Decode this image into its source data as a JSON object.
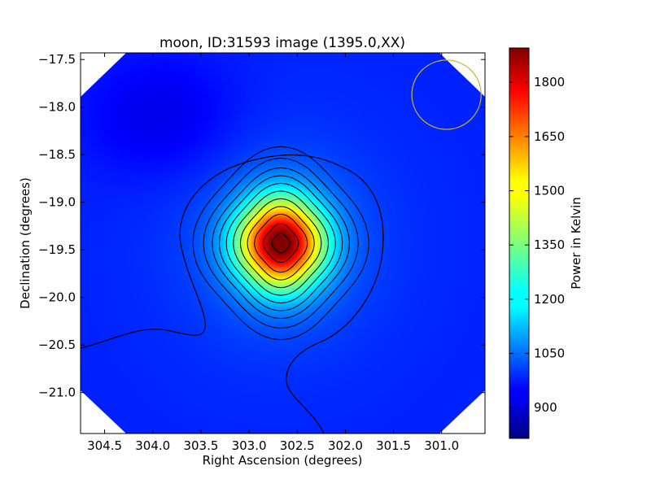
{
  "chart_data": {
    "type": "heatmap",
    "title": "moon, ID:31593 image (1395.0,XX)",
    "xlabel": "Right Ascension (degrees)",
    "ylabel": "Declination (degrees)",
    "xlim": [
      304.75,
      300.55
    ],
    "ylim": [
      -21.43,
      -17.43
    ],
    "x_axis_reversed": true,
    "xticks": [
      304.5,
      304.0,
      303.5,
      303.0,
      302.5,
      302.0,
      301.5,
      301.0
    ],
    "xtick_labels": [
      "304.5",
      "304.0",
      "303.5",
      "303.0",
      "302.5",
      "302.0",
      "301.5",
      "301.0"
    ],
    "yticks": [
      -17.5,
      -18.0,
      -18.5,
      -19.0,
      -19.5,
      -20.0,
      -20.5,
      -21.0
    ],
    "ytick_labels": [
      "−17.5",
      "−18.0",
      "−18.5",
      "−19.0",
      "−19.5",
      "−20.0",
      "−20.5",
      "−21.0"
    ],
    "colormap": "jet",
    "colorbar": {
      "label": "Power in Kelvin",
      "min": 815,
      "max": 1895,
      "ticks": [
        900,
        1050,
        1200,
        1350,
        1500,
        1650,
        1800
      ],
      "tick_labels": [
        "900",
        "1050",
        "1200",
        "1350",
        "1500",
        "1650",
        "1800"
      ]
    },
    "source_peak": {
      "ra": 302.67,
      "dec": -19.43,
      "power": 1870
    },
    "background_power": 985,
    "contours": "black",
    "grid": false,
    "beam_marker": {
      "ra": 300.95,
      "dec": -17.87,
      "radius_deg": 0.36,
      "color": "#c8b42a"
    }
  }
}
